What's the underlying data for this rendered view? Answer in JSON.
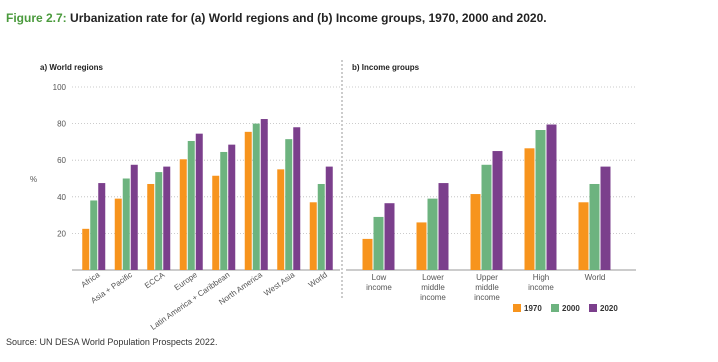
{
  "header": {
    "label": "Figure 2.7:",
    "title": "Urbanization rate for (a) World regions and (b) Income groups, 1970, 2000 and 2020."
  },
  "y_label": "%",
  "chart_data": [
    {
      "type": "bar",
      "title": "a) World regions",
      "categories": [
        "Africa",
        "Asia + Pacific",
        "ECCA",
        "Europe",
        "Latin America + Caribbean",
        "North America",
        "West Asia",
        "World"
      ],
      "series": [
        {
          "color": "#f7941d",
          "values": [
            22.5,
            39,
            47,
            60.5,
            51.5,
            75.5,
            55,
            37
          ]
        },
        {
          "color": "#6db37f",
          "values": [
            38,
            50,
            53.5,
            70.5,
            64.5,
            80,
            71.5,
            47
          ]
        },
        {
          "color": "#7b3f8c",
          "values": [
            47.5,
            57.5,
            56.5,
            74.5,
            68.5,
            82.5,
            78,
            56.5
          ]
        }
      ],
      "ylim": [
        0,
        100
      ],
      "yticks": [
        20,
        40,
        60,
        80,
        100
      ],
      "grid": true
    },
    {
      "type": "bar",
      "title": "b) Income groups",
      "categories": [
        "Low\nincome",
        "Lower\nmiddle\nincome",
        "Upper\nmiddle\nincome",
        "High\nincome",
        "World"
      ],
      "series": [
        {
          "name": "1970",
          "color": "#f7941d",
          "values": [
            17,
            26,
            41.5,
            66.5,
            37
          ]
        },
        {
          "name": "2000",
          "color": "#6db37f",
          "values": [
            29,
            39,
            57.5,
            76.5,
            47
          ]
        },
        {
          "name": "2020",
          "color": "#7b3f8c",
          "values": [
            36.5,
            47.5,
            65,
            79.5,
            56.5
          ]
        }
      ],
      "ylim": [
        0,
        100
      ],
      "yticks": [
        20,
        40,
        60,
        80,
        100
      ],
      "grid": true,
      "legend": "bottom-right"
    }
  ],
  "source": "Source: UN DESA World Population Prospects 2022."
}
